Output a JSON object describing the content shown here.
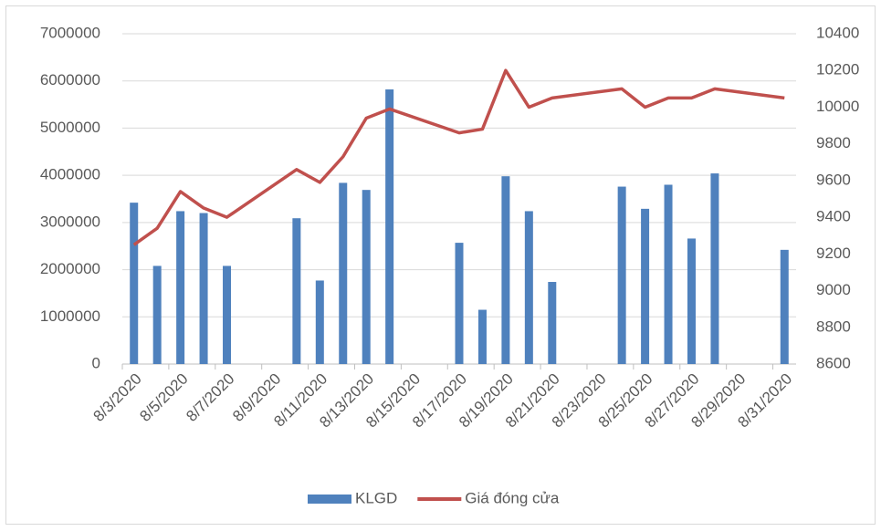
{
  "chart_data": {
    "type": "bar-line",
    "x": [
      "8/3/2020",
      "8/4/2020",
      "8/5/2020",
      "8/6/2020",
      "8/7/2020",
      "8/10/2020",
      "8/11/2020",
      "8/12/2020",
      "8/13/2020",
      "8/14/2020",
      "8/17/2020",
      "8/18/2020",
      "8/19/2020",
      "8/20/2020",
      "8/21/2020",
      "8/24/2020",
      "8/25/2020",
      "8/26/2020",
      "8/27/2020",
      "8/28/2020",
      "8/31/2020"
    ],
    "xlim": [
      "8/3/2020",
      "8/31/2020"
    ],
    "xticks": [
      "8/3/2020",
      "8/5/2020",
      "8/7/2020",
      "8/9/2020",
      "8/11/2020",
      "8/13/2020",
      "8/15/2020",
      "8/17/2020",
      "8/19/2020",
      "8/21/2020",
      "8/23/2020",
      "8/25/2020",
      "8/27/2020",
      "8/29/2020",
      "8/31/2020"
    ],
    "series": [
      {
        "name": "KLGD",
        "type": "bar",
        "color": "#4f81bd",
        "axis": "y",
        "values": [
          3420000,
          2080000,
          3240000,
          3200000,
          2080000,
          3090000,
          1770000,
          3840000,
          3690000,
          5820000,
          2570000,
          1150000,
          3980000,
          3240000,
          1740000,
          3760000,
          3290000,
          3800000,
          2660000,
          4040000,
          2420000
        ]
      },
      {
        "name": "Giá đóng cửa",
        "type": "line",
        "color": "#c0504d",
        "axis": "y2",
        "values": [
          9250,
          9340,
          9540,
          9450,
          9400,
          9660,
          9590,
          9730,
          9940,
          9990,
          9860,
          9880,
          10200,
          10000,
          10050,
          10100,
          10000,
          10050,
          10050,
          10100,
          10050
        ]
      }
    ],
    "ylim": [
      0,
      7000000
    ],
    "yticks": [
      0,
      1000000,
      2000000,
      3000000,
      4000000,
      5000000,
      6000000,
      7000000
    ],
    "y2lim": [
      8600,
      10400
    ],
    "y2ticks": [
      8600,
      8800,
      9000,
      9200,
      9400,
      9600,
      9800,
      10000,
      10200,
      10400
    ],
    "grid": true,
    "legend": "bottom"
  }
}
